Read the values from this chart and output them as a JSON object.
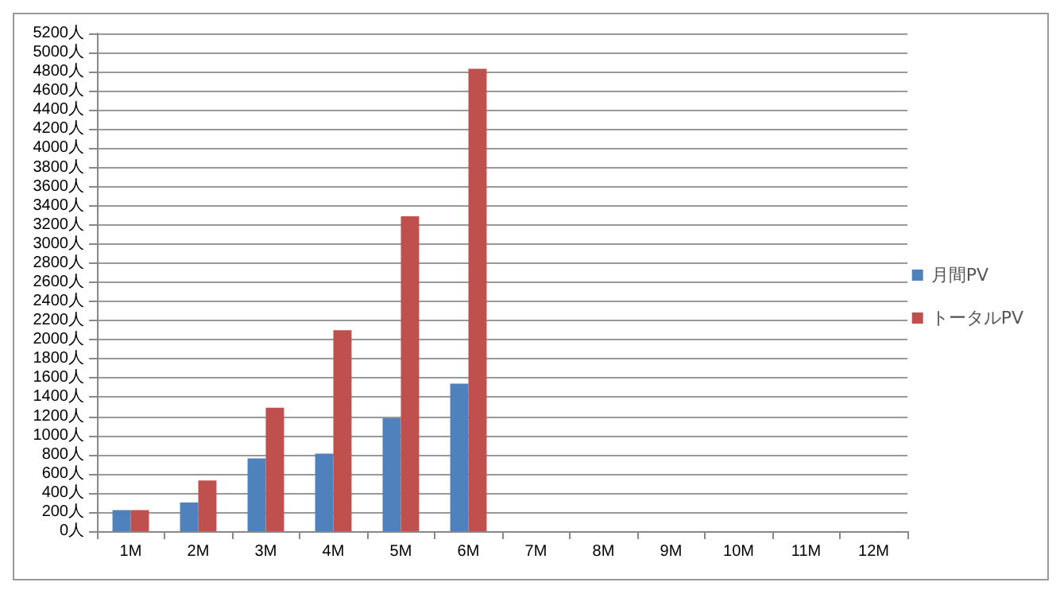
{
  "chart_data": {
    "type": "bar",
    "categories": [
      "1M",
      "2M",
      "3M",
      "4M",
      "5M",
      "6M",
      "7M",
      "8M",
      "9M",
      "10M",
      "11M",
      "12M"
    ],
    "series": [
      {
        "name": "月間PV",
        "color": "#4f81bd",
        "values": [
          220,
          300,
          760,
          810,
          1180,
          1540,
          null,
          null,
          null,
          null,
          null,
          null
        ]
      },
      {
        "name": "トータルPV",
        "color": "#c0504d",
        "values": [
          220,
          530,
          1290,
          2100,
          3290,
          4830,
          null,
          null,
          null,
          null,
          null,
          null
        ]
      }
    ],
    "ylim": [
      0,
      5200
    ],
    "yticks": [
      {
        "value": 0,
        "label": "0人"
      },
      {
        "value": 200,
        "label": "200人"
      },
      {
        "value": 400,
        "label": "400人"
      },
      {
        "value": 600,
        "label": "600人"
      },
      {
        "value": 800,
        "label": "800人"
      },
      {
        "value": 1000,
        "label": "1000人"
      },
      {
        "value": 1200,
        "label": "1200人"
      },
      {
        "value": 1400,
        "label": "1400人"
      },
      {
        "value": 1600,
        "label": "1600人"
      },
      {
        "value": 1800,
        "label": "1800人"
      },
      {
        "value": 2000,
        "label": "2000人"
      },
      {
        "value": 2200,
        "label": "2200人"
      },
      {
        "value": 2400,
        "label": "2400人"
      },
      {
        "value": 2600,
        "label": "2600人"
      },
      {
        "value": 2800,
        "label": "2800人"
      },
      {
        "value": 3000,
        "label": "3000人"
      },
      {
        "value": 3200,
        "label": "3200人"
      },
      {
        "value": 3400,
        "label": "3400人"
      },
      {
        "value": 3600,
        "label": "3600人"
      },
      {
        "value": 3800,
        "label": "3800人"
      },
      {
        "value": 4000,
        "label": "4000人"
      },
      {
        "value": 4200,
        "label": "4200人"
      },
      {
        "value": 4400,
        "label": "4400人"
      },
      {
        "value": 4600,
        "label": "4600人"
      },
      {
        "value": 4800,
        "label": "4800人"
      },
      {
        "value": 5000,
        "label": "5000人"
      },
      {
        "value": 5200,
        "label": "5200人"
      }
    ],
    "grid": "y",
    "legend": "right"
  }
}
